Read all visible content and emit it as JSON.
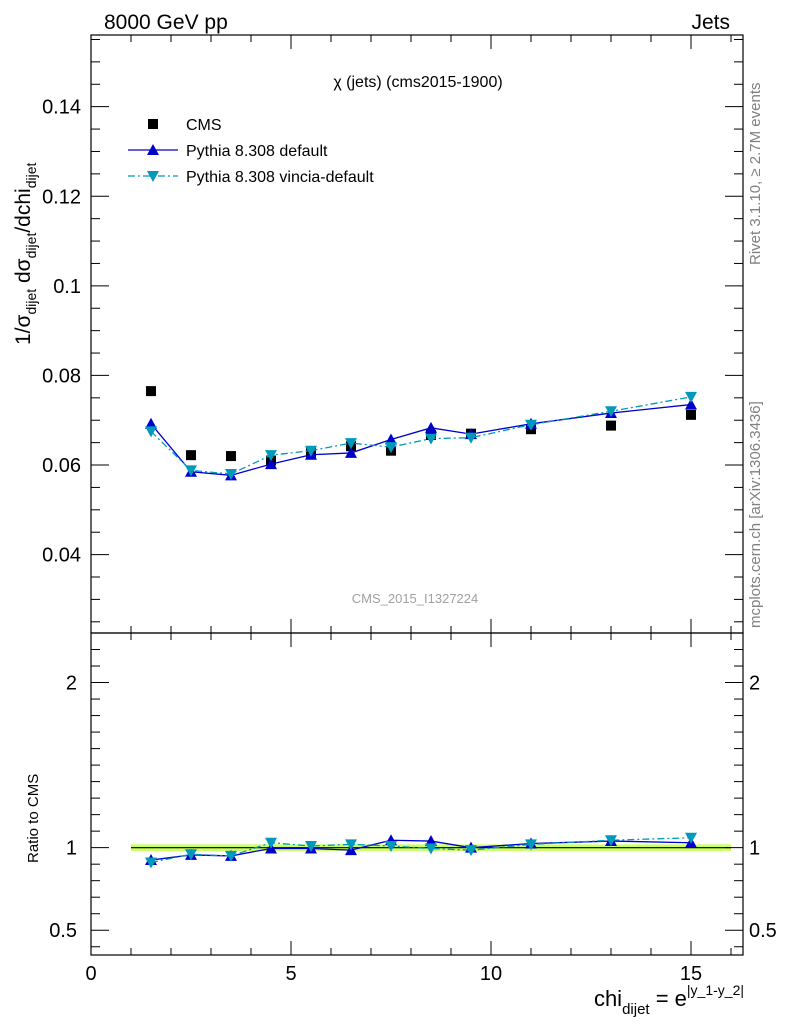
{
  "header": {
    "energy_label": "8000 GeV pp",
    "process_label": "Jets",
    "rivet_label": "Rivet 3.1.10, ≥ 2.7M events",
    "mcplots_label": "mcplots.cern.ch [arXiv:1306.3436]"
  },
  "chart_data": [
    {
      "type": "scatter",
      "panel": "main",
      "title": "χ (jets) (cms2015-1900)",
      "watermark": "CMS_2015_I1327224",
      "ylabel": "1/σ_dijet dσ_dijet/dchi_dijet",
      "xlim": [
        0,
        16.3
      ],
      "ylim": [
        0.0225,
        0.156
      ],
      "yticks": [
        0.04,
        0.06,
        0.08,
        0.1,
        0.12,
        0.14
      ],
      "ytick_labels": [
        "0.04",
        "0.06",
        "0.08",
        "0.1",
        "0.12",
        "0.14"
      ],
      "grid": false,
      "legend_position": "top-left",
      "x": [
        1.5,
        2.5,
        3.5,
        4.5,
        5.5,
        6.5,
        7.5,
        8.5,
        9.5,
        11,
        13,
        15
      ],
      "series": [
        {
          "name": "CMS",
          "color": "#000000",
          "marker": "square",
          "line": "none",
          "values": [
            0.0765,
            0.0622,
            0.062,
            0.061,
            0.0628,
            0.0642,
            0.0632,
            0.0667,
            0.067,
            0.068,
            0.0688,
            0.0712
          ]
        },
        {
          "name": "Pythia 8.308 default",
          "color": "#0000cc",
          "marker": "triangle-up",
          "line": "solid",
          "values": [
            0.0692,
            0.0585,
            0.0577,
            0.0602,
            0.0623,
            0.0627,
            0.0657,
            0.0683,
            0.0669,
            0.0692,
            0.0716,
            0.0735
          ]
        },
        {
          "name": "Pythia 8.308 vincia-default",
          "color": "#0099bb",
          "marker": "triangle-down",
          "line": "dashdot",
          "values": [
            0.0675,
            0.0588,
            0.058,
            0.0622,
            0.0632,
            0.0649,
            0.064,
            0.0659,
            0.0661,
            0.069,
            0.072,
            0.0752
          ]
        }
      ]
    },
    {
      "type": "line",
      "panel": "ratio",
      "ylabel": "Ratio to CMS",
      "xlabel": "chi_dijet = e^|y_1-y_2|",
      "xlim": [
        0,
        16.3
      ],
      "ylim": [
        0.35,
        2.3
      ],
      "yticks": [
        0.5,
        1,
        2
      ],
      "ytick_labels": [
        "0.5",
        "1",
        "2"
      ],
      "xticks": [
        0,
        5,
        10,
        15
      ],
      "xtick_labels": [
        "0",
        "5",
        "10",
        "15"
      ],
      "x": [
        1.5,
        2.5,
        3.5,
        4.5,
        5.5,
        6.5,
        7.5,
        8.5,
        9.5,
        11,
        13,
        15
      ],
      "band_color": "#ccff66",
      "series": [
        {
          "name": "Pythia 8.308 default",
          "color": "#0000cc",
          "marker": "triangle-up",
          "line": "solid",
          "values": [
            0.925,
            0.956,
            0.95,
            0.995,
            0.995,
            0.985,
            1.045,
            1.04,
            1.0,
            1.025,
            1.04,
            1.03
          ]
        },
        {
          "name": "Pythia 8.308 vincia-default",
          "color": "#0099bb",
          "marker": "triangle-down",
          "line": "dashdot",
          "values": [
            0.91,
            0.96,
            0.95,
            1.03,
            1.01,
            1.02,
            1.01,
            0.995,
            0.985,
            1.02,
            1.045,
            1.06
          ]
        }
      ]
    }
  ]
}
